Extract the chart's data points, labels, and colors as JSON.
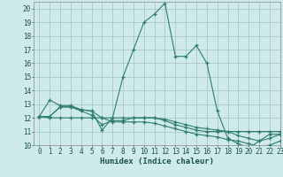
{
  "title": "",
  "xlabel": "Humidex (Indice chaleur)",
  "bg_color": "#ceeaea",
  "grid_color": "#b0cccc",
  "line_color": "#2e7d6e",
  "xlim": [
    -0.5,
    23
  ],
  "ylim": [
    10,
    20.5
  ],
  "yticks": [
    10,
    11,
    12,
    13,
    14,
    15,
    16,
    17,
    18,
    19,
    20
  ],
  "xticks": [
    0,
    1,
    2,
    3,
    4,
    5,
    6,
    7,
    8,
    9,
    10,
    11,
    12,
    13,
    14,
    15,
    16,
    17,
    18,
    19,
    20,
    21,
    22,
    23
  ],
  "series": [
    {
      "x": [
        0,
        1,
        2,
        3,
        4,
        5,
        6,
        7,
        8,
        9,
        10,
        11,
        12,
        13,
        14,
        15,
        16,
        17,
        18,
        19,
        20,
        21,
        22,
        23
      ],
      "y": [
        12.1,
        13.3,
        12.9,
        12.9,
        12.6,
        12.5,
        11.1,
        12.0,
        15.0,
        17.0,
        19.0,
        19.6,
        20.4,
        16.5,
        16.5,
        17.3,
        16.0,
        12.5,
        10.5,
        10.1,
        9.8,
        10.3,
        10.8,
        10.8
      ]
    },
    {
      "x": [
        0,
        1,
        2,
        3,
        4,
        5,
        6,
        7,
        8,
        9,
        10,
        11,
        12,
        13,
        14,
        15,
        16,
        17,
        18,
        19,
        20,
        21,
        22,
        23
      ],
      "y": [
        12.1,
        12.1,
        12.8,
        12.8,
        12.6,
        12.5,
        12.0,
        12.0,
        12.0,
        12.0,
        12.0,
        12.0,
        11.9,
        11.7,
        11.5,
        11.3,
        11.2,
        11.1,
        11.0,
        11.0,
        11.0,
        11.0,
        11.0,
        11.0
      ]
    },
    {
      "x": [
        0,
        1,
        2,
        3,
        4,
        5,
        6,
        7,
        8,
        9,
        10,
        11,
        12,
        13,
        14,
        15,
        16,
        17,
        18,
        19,
        20,
        21,
        22,
        23
      ],
      "y": [
        12.1,
        12.1,
        12.8,
        12.8,
        12.5,
        12.2,
        11.5,
        11.8,
        11.8,
        12.0,
        12.0,
        12.0,
        11.8,
        11.5,
        11.3,
        11.1,
        11.0,
        11.0,
        11.0,
        10.7,
        10.5,
        10.3,
        10.5,
        10.8
      ]
    },
    {
      "x": [
        0,
        1,
        2,
        3,
        4,
        5,
        6,
        7,
        8,
        9,
        10,
        11,
        12,
        13,
        14,
        15,
        16,
        17,
        18,
        19,
        20,
        21,
        22,
        23
      ],
      "y": [
        12.1,
        12.0,
        12.0,
        12.0,
        12.0,
        12.0,
        12.0,
        11.7,
        11.7,
        11.7,
        11.7,
        11.6,
        11.4,
        11.2,
        11.0,
        10.8,
        10.7,
        10.6,
        10.4,
        10.3,
        10.1,
        9.9,
        10.0,
        10.3
      ]
    }
  ]
}
